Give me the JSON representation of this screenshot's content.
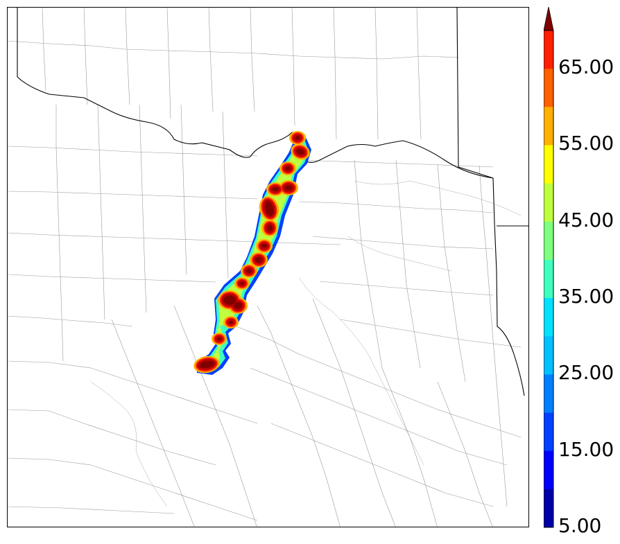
{
  "map": {
    "description_layers": [
      "county-boundaries",
      "state-boundaries",
      "rivers",
      "reflectivity-swath"
    ]
  },
  "colorbar": {
    "min": 5,
    "max": 70,
    "step": 5,
    "extend": "max",
    "labels": [
      "5.00",
      "15.00",
      "25.00",
      "35.00",
      "45.00",
      "55.00",
      "65.00"
    ],
    "colors": [
      "#0000a8",
      "#0000ff",
      "#0040ff",
      "#0080ff",
      "#00c0ff",
      "#00e0ff",
      "#40ffc0",
      "#80ff80",
      "#c0ff40",
      "#ffff00",
      "#ffb000",
      "#ff6000",
      "#ff2000",
      "#c00000",
      "#800000"
    ]
  }
}
